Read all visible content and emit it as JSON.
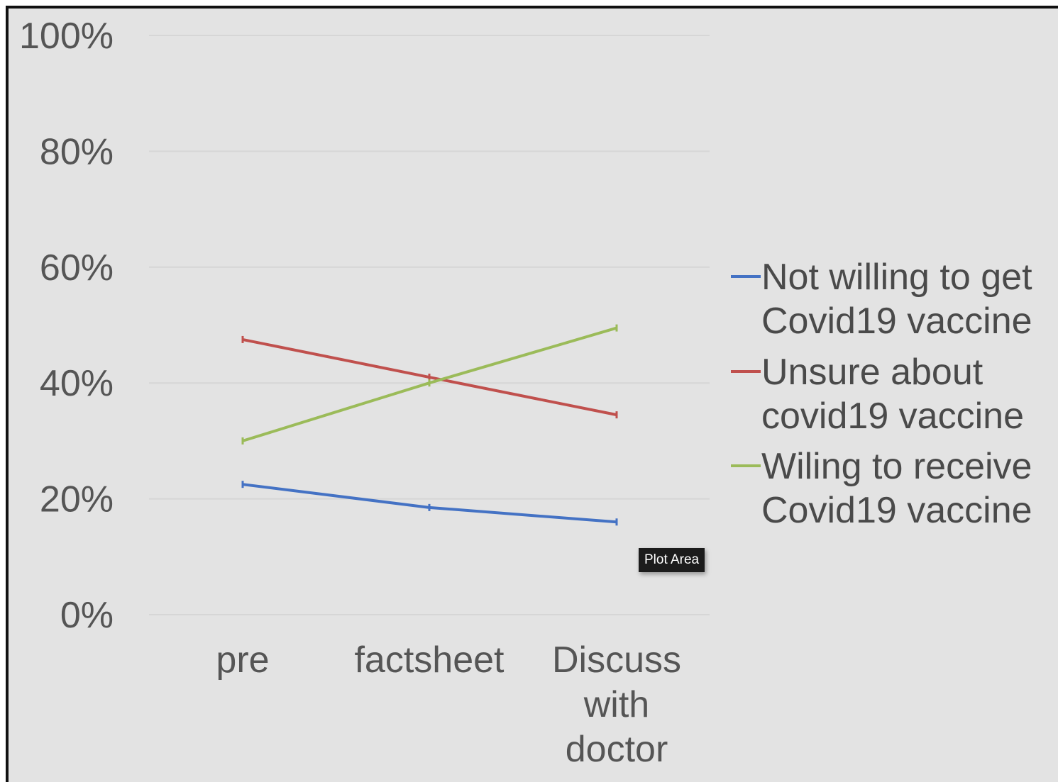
{
  "chart_data": {
    "type": "line",
    "categories": [
      [
        "pre"
      ],
      [
        "factsheet"
      ],
      [
        "Discuss",
        "with",
        "doctor"
      ]
    ],
    "y_ticks": [
      "0%",
      "20%",
      "40%",
      "60%",
      "80%",
      "100%"
    ],
    "ylim": [
      0,
      100
    ],
    "grid": true,
    "legend_position": "right",
    "series": [
      {
        "name_lines": [
          "Not willing to get",
          "Covid19 vaccine"
        ],
        "color": "#4472c4",
        "values": [
          22.5,
          18.5,
          16
        ]
      },
      {
        "name_lines": [
          "Unsure about",
          "covid19 vaccine"
        ],
        "color": "#c0504d",
        "values": [
          47.5,
          41,
          34.5
        ]
      },
      {
        "name_lines": [
          "Wiling to receive",
          "Covid19 vaccine"
        ],
        "color": "#9bbb59",
        "values": [
          30,
          40,
          49.5
        ]
      }
    ]
  },
  "tooltip": {
    "text": "Plot Area"
  }
}
